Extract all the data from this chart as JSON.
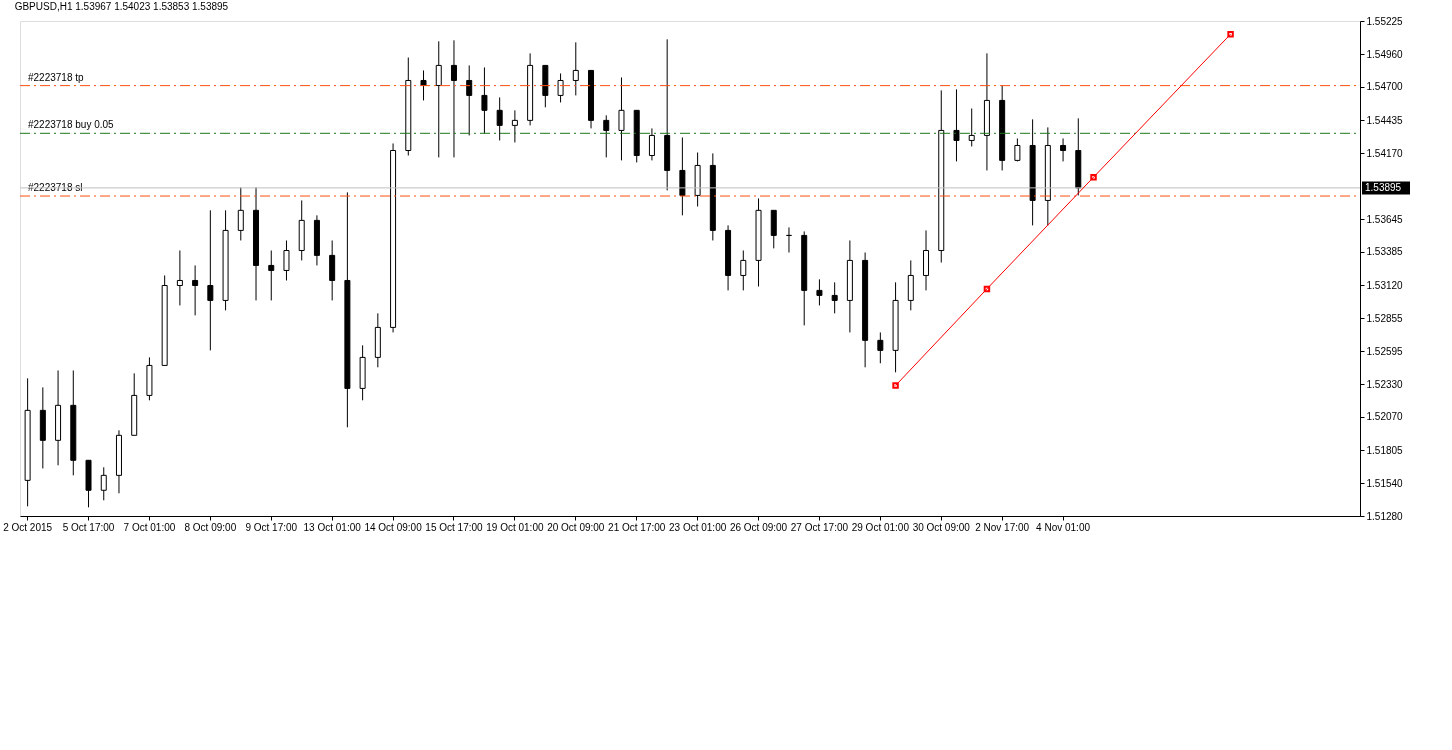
{
  "chart_data": {
    "type": "candlestick",
    "title": "GBPUSD,H1  1.53967 1.54023 1.53853 1.53895",
    "color": "#000000",
    "categories": [
      "2 Oct 2015",
      null,
      null,
      null,
      "5 Oct 17:00",
      null,
      null,
      null,
      "7 Oct 01:00",
      null,
      null,
      null,
      "8 Oct 09:00",
      null,
      null,
      null,
      "9 Oct 17:00",
      null,
      null,
      null,
      "13 Oct 01:00",
      null,
      null,
      null,
      "14 Oct 09:00",
      null,
      null,
      null,
      "15 Oct 17:00",
      null,
      null,
      null,
      "19 Oct 01:00",
      null,
      null,
      null,
      "20 Oct 09:00",
      null,
      null,
      null,
      "21 Oct 17:00",
      null,
      null,
      null,
      "23 Oct 01:00",
      null,
      null,
      null,
      "26 Oct 09:00",
      null,
      null,
      null,
      "27 Oct 17:00",
      null,
      null,
      null,
      "29 Oct 01:00",
      null,
      null,
      null,
      "30 Oct 09:00",
      null,
      null,
      null,
      "2 Nov 17:00",
      null,
      null,
      null,
      "4 Nov 01:00",
      null,
      null,
      null,
      null,
      null,
      null,
      null,
      null,
      null,
      null,
      null,
      null,
      null,
      null,
      null,
      null,
      null,
      null,
      null
    ],
    "ohlc": [
      [
        1.51564,
        1.52377,
        1.51357,
        1.52122
      ],
      [
        1.52122,
        1.52305,
        1.51659,
        1.51883
      ],
      [
        1.51883,
        1.5244,
        1.51684,
        1.52162
      ],
      [
        1.52162,
        1.5244,
        1.51604,
        1.51724
      ],
      [
        1.51724,
        1.51724,
        1.51349,
        1.51485
      ],
      [
        1.51485,
        1.51668,
        1.51405,
        1.51604
      ],
      [
        1.51604,
        1.51963,
        1.51461,
        1.51923
      ],
      [
        1.51923,
        1.52417,
        1.51923,
        1.52241
      ],
      [
        1.52241,
        1.52544,
        1.52202,
        1.5248
      ],
      [
        1.5248,
        1.53197,
        1.5248,
        1.53117
      ],
      [
        1.53117,
        1.53396,
        1.52958,
        1.53157
      ],
      [
        1.53157,
        1.53277,
        1.52879,
        1.53117
      ],
      [
        1.53117,
        1.53716,
        1.526,
        1.52998
      ],
      [
        1.52998,
        1.53716,
        1.52919,
        1.53556
      ],
      [
        1.53556,
        1.53899,
        1.53476,
        1.53716
      ],
      [
        1.53716,
        1.53899,
        1.52998,
        1.53277
      ],
      [
        1.53277,
        1.53396,
        1.52998,
        1.53237
      ],
      [
        1.53237,
        1.53476,
        1.53157,
        1.53396
      ],
      [
        1.53396,
        1.53795,
        1.53317,
        1.53636
      ],
      [
        1.53636,
        1.53676,
        1.53277,
        1.53357
      ],
      [
        1.53357,
        1.53476,
        1.52998,
        1.53157
      ],
      [
        1.53157,
        1.53859,
        1.51987,
        1.52297
      ],
      [
        1.52297,
        1.5264,
        1.52202,
        1.52544
      ],
      [
        1.52544,
        1.52895,
        1.52465,
        1.52783
      ],
      [
        1.52783,
        1.54249,
        1.52743,
        1.54193
      ],
      [
        1.54193,
        1.54934,
        1.54153,
        1.54751
      ],
      [
        1.54751,
        1.54831,
        1.54592,
        1.54711
      ],
      [
        1.54711,
        1.55063,
        1.54138,
        1.54871
      ],
      [
        1.54871,
        1.55071,
        1.54138,
        1.54751
      ],
      [
        1.54751,
        1.54871,
        1.54313,
        1.54632
      ],
      [
        1.54632,
        1.54855,
        1.54329,
        1.54513
      ],
      [
        1.54513,
        1.54616,
        1.54273,
        1.54393
      ],
      [
        1.54393,
        1.54513,
        1.54257,
        1.54433
      ],
      [
        1.54433,
        1.54967,
        1.54393,
        1.54871
      ],
      [
        1.54871,
        1.54871,
        1.54537,
        1.54632
      ],
      [
        1.54632,
        1.54807,
        1.54576,
        1.54751
      ],
      [
        1.54751,
        1.55055,
        1.54632,
        1.54831
      ],
      [
        1.54831,
        1.54831,
        1.54369,
        1.54433
      ],
      [
        1.54433,
        1.54473,
        1.54138,
        1.54353
      ],
      [
        1.54353,
        1.54775,
        1.54114,
        1.54513
      ],
      [
        1.54513,
        1.54513,
        1.54098,
        1.54153
      ],
      [
        1.54153,
        1.54369,
        1.54114,
        1.54313
      ],
      [
        1.54313,
        1.55079,
        1.53875,
        1.54034
      ],
      [
        1.54034,
        1.54297,
        1.53676,
        1.53835
      ],
      [
        1.53835,
        1.54177,
        1.53747,
        1.54074
      ],
      [
        1.54074,
        1.5417,
        1.53476,
        1.53556
      ],
      [
        1.53556,
        1.53596,
        1.53078,
        1.53197
      ],
      [
        1.53197,
        1.53396,
        1.53078,
        1.53317
      ],
      [
        1.53317,
        1.53811,
        1.53109,
        1.53716
      ],
      [
        1.53716,
        1.53716,
        1.53413,
        1.53516
      ],
      [
        1.53516,
        1.5358,
        1.5338,
        1.53516
      ],
      [
        1.53516,
        1.53548,
        1.52799,
        1.53078
      ],
      [
        1.53078,
        1.53166,
        1.52958,
        1.53038
      ],
      [
        1.53038,
        1.53142,
        1.52895,
        1.52998
      ],
      [
        1.52998,
        1.53476,
        1.52743,
        1.53317
      ],
      [
        1.53317,
        1.5338,
        1.52465,
        1.5268
      ],
      [
        1.5268,
        1.52743,
        1.52497,
        1.526
      ],
      [
        1.526,
        1.53142,
        1.52425,
        1.52998
      ],
      [
        1.52998,
        1.53317,
        1.52919,
        1.53197
      ],
      [
        1.53197,
        1.53556,
        1.53078,
        1.53396
      ],
      [
        1.53396,
        1.54672,
        1.533,
        1.54353
      ],
      [
        1.54353,
        1.5468,
        1.54106,
        1.54273
      ],
      [
        1.54273,
        1.54528,
        1.54225,
        1.54313
      ],
      [
        1.54313,
        1.54967,
        1.54034,
        1.54592
      ],
      [
        1.54592,
        1.54711,
        1.54034,
        1.54114
      ],
      [
        1.54114,
        1.54289,
        1.54106,
        1.54233
      ],
      [
        1.54233,
        1.54441,
        1.53596,
        1.53795
      ],
      [
        1.53795,
        1.54377,
        1.53596,
        1.54233
      ],
      [
        1.54233,
        1.54289,
        1.54106,
        1.54193
      ],
      [
        1.54193,
        1.54449,
        1.53835,
        1.53895
      ],
      null,
      null,
      null,
      null,
      null,
      null,
      null,
      null,
      null,
      null,
      null,
      null,
      null,
      null,
      null,
      null,
      null,
      null
    ],
    "series": [
      {
        "type": "line",
        "color": "#ff0000",
        "values": [
          null,
          null,
          null,
          null,
          null,
          null,
          null,
          null,
          null,
          null,
          null,
          null,
          null,
          null,
          null,
          null,
          null,
          null,
          null,
          null,
          null,
          null,
          null,
          null,
          null,
          null,
          null,
          null,
          null,
          null,
          null,
          null,
          null,
          null,
          null,
          null,
          null,
          null,
          null,
          null,
          null,
          null,
          null,
          null,
          null,
          null,
          null,
          null,
          null,
          null,
          null,
          null,
          null,
          null,
          null,
          null,
          null,
          1.5232,
          null,
          null,
          null,
          null,
          null,
          1.5309,
          null,
          null,
          null,
          null,
          null,
          null,
          1.5398,
          null,
          null,
          null,
          null,
          null,
          null,
          null,
          null,
          1.5512,
          null,
          null,
          null,
          null,
          null,
          null,
          null,
          null
        ]
      }
    ],
    "ylim": [
      1.5128,
      1.55225
    ],
    "yticks": [
      1.55225,
      {
        "value": 1.5496,
        "label": "1.54960"
      },
      {
        "value": 1.547,
        "label": "1.54700"
      },
      1.54435,
      {
        "value": 1.5417,
        "label": "1.54170"
      },
      1.53645,
      1.53385,
      {
        "value": 1.5312,
        "label": "1.53120"
      },
      1.52855,
      1.52595,
      {
        "value": 1.5233,
        "label": "1.52330"
      },
      {
        "value": 1.5207,
        "label": "1.52070"
      },
      1.51805,
      {
        "value": 1.5154,
        "label": "1.51540"
      },
      {
        "value": 1.5128,
        "label": "1.51280"
      }
    ],
    "ref_lines": [
      {
        "axis": "y",
        "value": 1.5471,
        "label": "#2223718 tp",
        "color": "#ff5010",
        "line_style": "dashed"
      },
      {
        "axis": "y",
        "value": 1.5433,
        "label": "#2223718 buy 0.05",
        "color": "#1a7a1a",
        "line_style": "dashed"
      },
      {
        "axis": "y",
        "value": 1.5383,
        "label": "#2223718 sl",
        "color": "#ff5010",
        "line_style": "dashed"
      },
      {
        "axis": "y",
        "value": 1.53895,
        "label": "1.53895",
        "color": "#c0c0c0",
        "line_style": "solid"
      }
    ],
    "grid": false,
    "marker": "square"
  }
}
